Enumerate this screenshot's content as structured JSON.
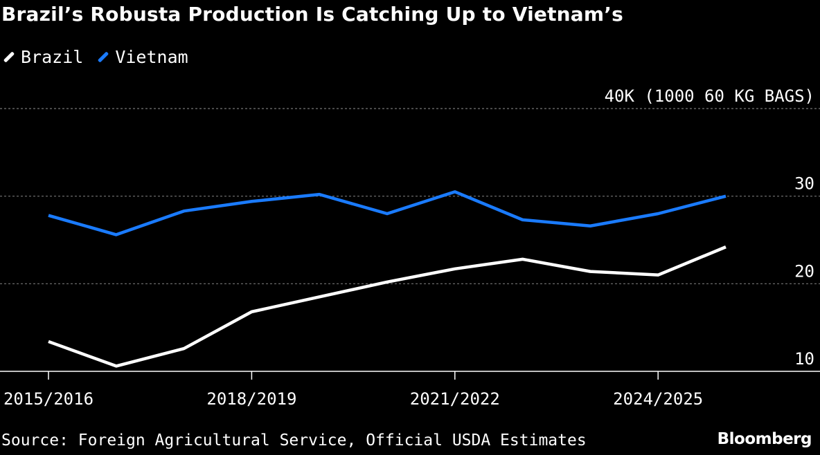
{
  "title": "Brazil’s Robusta Production Is Catching Up to Vietnam’s",
  "source": "Source: Foreign Agricultural Service, Official USDA Estimates",
  "logo": "Bloomberg",
  "chart_data": {
    "type": "line",
    "title": "Brazil’s Robusta Production Is Catching Up to Vietnam’s",
    "ylabel": "40K (1000 60 KG BAGS)",
    "ylim": [
      10,
      40
    ],
    "yticks": [
      {
        "value": 10,
        "label": "10"
      },
      {
        "value": 20,
        "label": "20"
      },
      {
        "value": 30,
        "label": "30"
      },
      {
        "value": 40,
        "label": "40K (1000 60 KG BAGS)"
      }
    ],
    "grid": true,
    "legend": "top-left",
    "x": [
      "2015/2016",
      "2016/2017",
      "2017/2018",
      "2018/2019",
      "2019/2020",
      "2020/2021",
      "2021/2022",
      "2022/2023",
      "2023/2024",
      "2024/2025",
      "2025/2026"
    ],
    "xtick_labels": [
      "2015/2016",
      "2018/2019",
      "2021/2022",
      "2024/2025"
    ],
    "series": [
      {
        "name": "Brazil",
        "color": "#ffffff",
        "values": [
          13.4,
          10.6,
          12.6,
          16.8,
          18.5,
          20.2,
          21.7,
          22.8,
          21.4,
          21.0,
          24.2
        ]
      },
      {
        "name": "Vietnam",
        "color": "#1a7bff",
        "values": [
          27.8,
          25.6,
          28.3,
          29.4,
          30.2,
          28.0,
          30.5,
          27.3,
          26.6,
          28.0,
          30.0
        ]
      }
    ]
  }
}
